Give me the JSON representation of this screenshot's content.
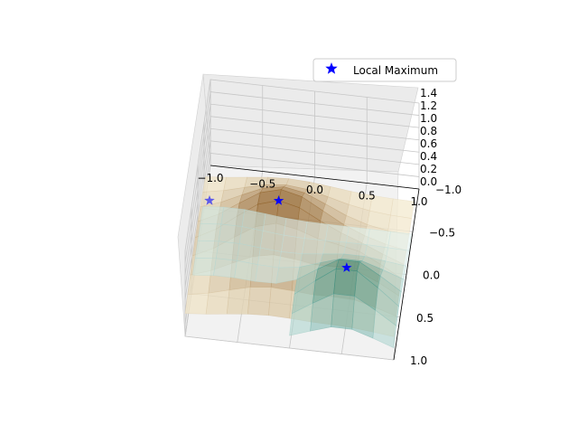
{
  "chart_data": {
    "type": "surface3d",
    "title": "",
    "xlabel": "",
    "ylabel": "",
    "zlabel": "",
    "xlim": [
      -1.0,
      1.0
    ],
    "ylim": [
      -1.0,
      1.0
    ],
    "zlim": [
      0.0,
      1.4
    ],
    "grid": true,
    "x_ticks": [
      "−1.0",
      "−0.5",
      "0.0",
      "0.5",
      "1.0"
    ],
    "y_ticks": [
      "1.0",
      "0.5",
      "0.0",
      "−0.5",
      "−1.0"
    ],
    "z_ticks": [
      "1.4",
      "1.2",
      "1.0",
      "0.8",
      "0.6",
      "0.4",
      "0.2",
      "0.0"
    ],
    "surfaces": [
      {
        "colormap": "BrBG",
        "color_low": "#f5ecd2",
        "color_high": "#8c5a1e"
      },
      {
        "colormap": "BrBG_r",
        "color_low": "#e3f3f1",
        "color_high": "#2f8c7e"
      }
    ],
    "legend": {
      "placement": "top-right",
      "entries": [
        {
          "label": "Local Maximum",
          "marker": "star",
          "color": "#0000ff"
        }
      ]
    },
    "local_maxima": [
      {
        "x": -0.2,
        "y": 0.2,
        "z": 1.25
      },
      {
        "x": 0.5,
        "y": 0.6,
        "z": 0.85
      },
      {
        "x": -0.9,
        "y": -0.1,
        "z": 0.7
      }
    ]
  }
}
